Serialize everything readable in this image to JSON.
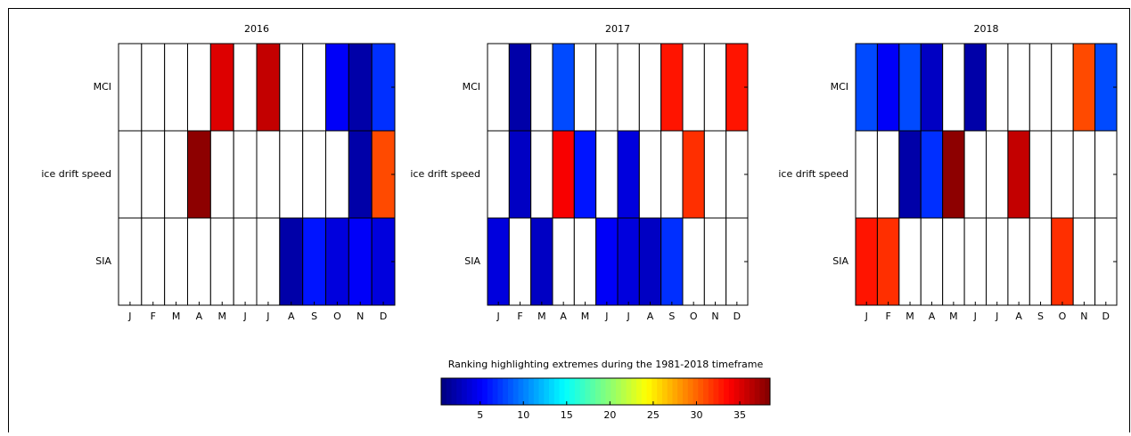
{
  "chart_data": [
    {
      "type": "heatmap",
      "title": "2016",
      "x_categories": [
        "J",
        "F",
        "M",
        "A",
        "M",
        "J",
        "J",
        "A",
        "S",
        "O",
        "N",
        "D"
      ],
      "y_categories": [
        "MCI",
        "ice drift speed",
        "SIA"
      ],
      "values": [
        [
          null,
          null,
          null,
          null,
          35,
          null,
          36,
          null,
          null,
          5,
          2,
          7
        ],
        [
          null,
          null,
          null,
          38,
          null,
          null,
          null,
          null,
          null,
          null,
          2,
          31
        ],
        [
          null,
          null,
          null,
          null,
          null,
          null,
          null,
          2,
          6,
          4,
          5,
          4
        ]
      ]
    },
    {
      "type": "heatmap",
      "title": "2017",
      "x_categories": [
        "J",
        "F",
        "M",
        "A",
        "M",
        "J",
        "J",
        "A",
        "S",
        "O",
        "N",
        "D"
      ],
      "y_categories": [
        "MCI",
        "ice drift speed",
        "SIA"
      ],
      "values": [
        [
          null,
          2,
          null,
          8,
          null,
          null,
          null,
          null,
          33,
          null,
          null,
          33
        ],
        [
          null,
          3,
          null,
          34,
          6,
          null,
          4,
          null,
          null,
          32,
          null,
          null
        ],
        [
          4,
          null,
          3,
          null,
          null,
          5,
          4,
          3,
          7,
          null,
          null,
          null
        ]
      ]
    },
    {
      "type": "heatmap",
      "title": "2018",
      "x_categories": [
        "J",
        "F",
        "M",
        "A",
        "M",
        "J",
        "J",
        "A",
        "S",
        "O",
        "N",
        "D"
      ],
      "y_categories": [
        "MCI",
        "ice drift speed",
        "SIA"
      ],
      "values": [
        [
          8,
          5,
          8,
          3,
          null,
          2,
          null,
          null,
          null,
          null,
          31,
          8
        ],
        [
          null,
          null,
          2,
          7,
          38,
          null,
          null,
          36,
          null,
          null,
          null,
          null
        ],
        [
          33,
          32,
          null,
          null,
          null,
          null,
          null,
          null,
          null,
          32,
          null,
          null
        ]
      ]
    }
  ],
  "colorbar": {
    "label": "Ranking highlighting extremes during the 1981-2018 timeframe",
    "lim": [
      0.5,
      38.5
    ],
    "ticks": [
      5,
      10,
      15,
      20,
      25,
      30,
      35
    ],
    "colormap": "jet"
  }
}
